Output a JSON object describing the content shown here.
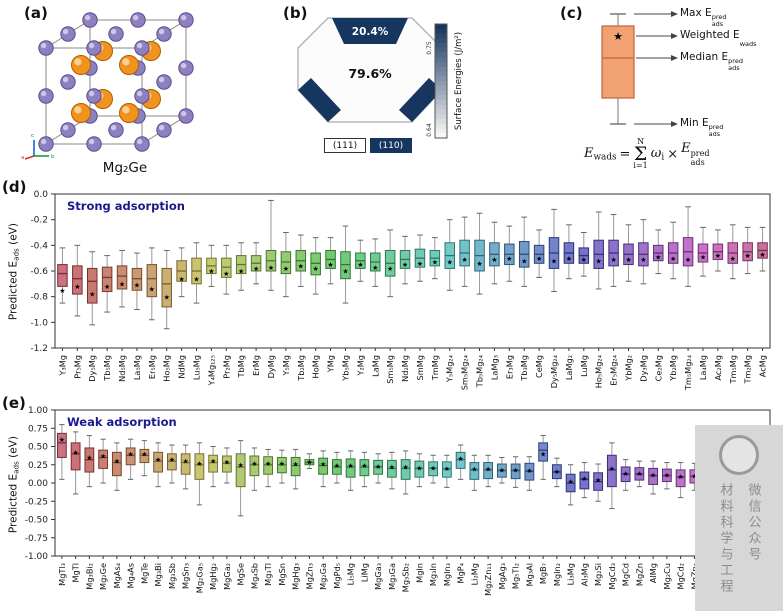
{
  "panel_labels": {
    "a": "(a)",
    "b": "(b)",
    "c": "(c)",
    "d": "(d)",
    "e": "(e)"
  },
  "panels": {
    "a": {
      "caption": "Mg₂Ge",
      "axis_labels": [
        "a",
        "b",
        "c"
      ],
      "colors": {
        "purple": "#8d7fc0",
        "purple_dark": "#5a4d8a",
        "purple_light": "#d9d1ef",
        "orange": "#f0941f",
        "orange_dark": "#a95f08",
        "orange_light": "#ffd9a1"
      }
    },
    "b": {
      "navy_hex": "#17365f",
      "top_pct": "20.4%",
      "front_pct": "79.6%",
      "legend": [
        {
          "label": "(111)",
          "color": "#ffffff"
        },
        {
          "label": "(110)",
          "color": "#17365f"
        }
      ],
      "colorbar": {
        "title": "Surface Energies (J/m²)",
        "tick_top": "0.75",
        "tick_bottom": "0.64"
      }
    },
    "c": {
      "box_color": "#f2a173",
      "box_edge": "#c4643a",
      "star_glyph": "★",
      "annotations": [
        {
          "text": "Max E",
          "sub": "ads",
          "sup": "pred"
        },
        {
          "text": "Weighted E",
          "sub": "wads",
          "sup": ""
        },
        {
          "text": "Median E",
          "sub": "ads",
          "sup": "pred"
        },
        {
          "text": "Min E",
          "sub": "ads",
          "sup": "pred"
        }
      ],
      "formula": {
        "lhs": "E",
        "lhs_sub": "wads",
        "eq": "=",
        "sum_top": "N",
        "sigma": "Σ",
        "sum_bottom": "i=1",
        "body": "ω",
        "body_sub": "i",
        "times": "×",
        "rhs": "E",
        "rhs_sup": "pred",
        "rhs_sub": "ads"
      }
    }
  },
  "chart_data": [
    {
      "type": "box",
      "title": "Strong adsorption",
      "title_color": "#1a1a8c",
      "ylabel": {
        "base": "Predicted E",
        "sub": "ads",
        "end": " (eV)"
      },
      "ylim": [
        0.0,
        -1.2
      ],
      "yticks": [
        "0.0",
        "-0.2",
        "-0.4",
        "-0.6",
        "-0.8",
        "-1.0",
        "-1.2"
      ],
      "grid": false,
      "legend": false,
      "marker_glyph": "★",
      "palette": {
        "hue_start": 350,
        "hue_span": 340,
        "sat": 45,
        "light": 62
      },
      "categories": [
        "Y₃Mg",
        "Pr₅Mg",
        "Dy₅Mg",
        "Tb₅Mg",
        "Nd₅Mg",
        "La₅Mg",
        "Er₅Mg",
        "Ho₅Mg",
        "NdMg",
        "Lu₅Mg",
        "Y₄Mg₁₂₅",
        "Pr₂Mg",
        "TbMg",
        "ErMg",
        "DyMg",
        "Y₅Mg",
        "Tb₂Mg",
        "HoMg",
        "YMg",
        "Yb₅Mg",
        "Y₂Mg",
        "LaMg",
        "Sm₅Mg",
        "Nd₂Mg",
        "SmMg",
        "TmMg",
        "Y₅Mg₂₄",
        "Sm₅Mg₂₄",
        "Tb₅Mg₂₄",
        "LaMg₃",
        "Er₃Mg",
        "Tb₃Mg",
        "CeMg",
        "Dy₅Mg₂₄",
        "LaMg₂",
        "LuMg",
        "Ho₅Mg₂₄",
        "Er₅Mg₂₄",
        "YbMg₂",
        "Dy₃Mg",
        "Ce₂Mg",
        "Yb₂Mg",
        "Tm₅Mg₂₄",
        "La₄Mg",
        "Ac₂Mg",
        "Tm₅Mg",
        "Tm₂Mg",
        "AcMg"
      ],
      "boxes": [
        [
          -0.85,
          -0.72,
          -0.62,
          -0.55,
          -0.42,
          -0.75
        ],
        [
          -0.95,
          -0.78,
          -0.66,
          -0.56,
          -0.4,
          -0.72
        ],
        [
          -1.02,
          -0.85,
          -0.68,
          -0.58,
          -0.45,
          -0.78
        ],
        [
          -0.92,
          -0.76,
          -0.65,
          -0.57,
          -0.48,
          -0.72
        ],
        [
          -0.88,
          -0.74,
          -0.64,
          -0.56,
          -0.44,
          -0.7
        ],
        [
          -0.9,
          -0.75,
          -0.66,
          -0.58,
          -0.46,
          -0.71
        ],
        [
          -0.98,
          -0.8,
          -0.66,
          -0.55,
          -0.42,
          -0.74
        ],
        [
          -1.05,
          -0.88,
          -0.7,
          -0.58,
          -0.44,
          -0.8
        ],
        [
          -0.8,
          -0.68,
          -0.6,
          -0.52,
          -0.42,
          -0.66
        ],
        [
          -0.85,
          -0.7,
          -0.6,
          -0.5,
          -0.38,
          -0.66
        ],
        [
          -0.72,
          -0.62,
          -0.56,
          -0.5,
          -0.4,
          -0.6
        ],
        [
          -0.78,
          -0.65,
          -0.57,
          -0.5,
          -0.4,
          -0.62
        ],
        [
          -0.75,
          -0.62,
          -0.55,
          -0.48,
          -0.38,
          -0.6
        ],
        [
          -0.7,
          -0.6,
          -0.54,
          -0.48,
          -0.38,
          -0.58
        ],
        [
          -0.75,
          -0.6,
          -0.52,
          -0.44,
          -0.05,
          -0.57
        ],
        [
          -0.8,
          -0.62,
          -0.53,
          -0.45,
          -0.3,
          -0.58
        ],
        [
          -0.72,
          -0.6,
          -0.52,
          -0.44,
          -0.32,
          -0.56
        ],
        [
          -0.78,
          -0.63,
          -0.54,
          -0.46,
          -0.34,
          -0.58
        ],
        [
          -0.7,
          -0.58,
          -0.51,
          -0.44,
          -0.34,
          -0.55
        ],
        [
          -0.85,
          -0.66,
          -0.55,
          -0.45,
          -0.25,
          -0.6
        ],
        [
          -0.68,
          -0.58,
          -0.52,
          -0.46,
          -0.36,
          -0.55
        ],
        [
          -0.72,
          -0.6,
          -0.53,
          -0.46,
          -0.35,
          -0.57
        ],
        [
          -0.8,
          -0.64,
          -0.54,
          -0.44,
          -0.28,
          -0.58
        ],
        [
          -0.7,
          -0.58,
          -0.51,
          -0.44,
          -0.33,
          -0.55
        ],
        [
          -0.68,
          -0.57,
          -0.5,
          -0.43,
          -0.32,
          -0.54
        ],
        [
          -0.66,
          -0.56,
          -0.5,
          -0.44,
          -0.34,
          -0.53
        ],
        [
          -0.75,
          -0.58,
          -0.48,
          -0.38,
          -0.2,
          -0.53
        ],
        [
          -0.72,
          -0.56,
          -0.46,
          -0.36,
          -0.18,
          -0.51
        ],
        [
          -0.78,
          -0.6,
          -0.48,
          -0.36,
          -0.15,
          -0.54
        ],
        [
          -0.7,
          -0.56,
          -0.47,
          -0.38,
          -0.22,
          -0.51
        ],
        [
          -0.68,
          -0.55,
          -0.47,
          -0.39,
          -0.25,
          -0.5
        ],
        [
          -0.72,
          -0.57,
          -0.47,
          -0.37,
          -0.18,
          -0.52
        ],
        [
          -0.65,
          -0.54,
          -0.47,
          -0.4,
          -0.28,
          -0.5
        ],
        [
          -0.76,
          -0.58,
          -0.46,
          -0.34,
          -0.12,
          -0.52
        ],
        [
          -0.66,
          -0.54,
          -0.46,
          -0.38,
          -0.24,
          -0.5
        ],
        [
          -0.64,
          -0.54,
          -0.48,
          -0.42,
          -0.3,
          -0.51
        ],
        [
          -0.74,
          -0.58,
          -0.47,
          -0.36,
          -0.14,
          -0.52
        ],
        [
          -0.72,
          -0.56,
          -0.46,
          -0.36,
          -0.16,
          -0.51
        ],
        [
          -0.68,
          -0.55,
          -0.47,
          -0.39,
          -0.24,
          -0.51
        ],
        [
          -0.7,
          -0.56,
          -0.47,
          -0.38,
          -0.2,
          -0.51
        ],
        [
          -0.62,
          -0.52,
          -0.46,
          -0.4,
          -0.28,
          -0.49
        ],
        [
          -0.66,
          -0.54,
          -0.46,
          -0.38,
          -0.22,
          -0.5
        ],
        [
          -0.72,
          -0.56,
          -0.45,
          -0.34,
          -0.1,
          -0.51
        ],
        [
          -0.64,
          -0.53,
          -0.46,
          -0.39,
          -0.26,
          -0.49
        ],
        [
          -0.6,
          -0.51,
          -0.45,
          -0.39,
          -0.28,
          -0.48
        ],
        [
          -0.66,
          -0.54,
          -0.46,
          -0.38,
          -0.24,
          -0.5
        ],
        [
          -0.62,
          -0.52,
          -0.45,
          -0.38,
          -0.26,
          -0.48
        ],
        [
          -0.6,
          -0.5,
          -0.44,
          -0.38,
          -0.26,
          -0.47
        ]
      ],
      "box_stats_order": [
        "whisker_low",
        "q1",
        "median",
        "q3",
        "whisker_high",
        "weighted_star"
      ]
    },
    {
      "type": "box",
      "title": "Weak adsorption",
      "title_color": "#1a1a8c",
      "ylabel": {
        "base": "Predicted E",
        "sub": "ads",
        "end": " (eV)"
      },
      "ylim": [
        1.0,
        -1.0
      ],
      "yticks": [
        "1.00",
        "0.75",
        "0.50",
        "0.25",
        "0.00",
        "-0.25",
        "-0.50",
        "-0.75",
        "-1.00"
      ],
      "grid": false,
      "legend": false,
      "marker_glyph": "★",
      "palette": {
        "hue_start": 350,
        "hue_span": 340,
        "sat": 45,
        "light": 62
      },
      "categories": [
        "MgTl₃",
        "MgTl",
        "Mg₃Bi₂",
        "Mg₂Ge",
        "MgAs₄",
        "Mg₄As",
        "MgTe",
        "Mg₃Bi",
        "Mg₃Sb",
        "MgSn₃",
        "Mg₂Ga₅",
        "MgHg₂",
        "MgGa₂",
        "MgSe",
        "Mg₄Sb",
        "Mg₃Tl",
        "MgSn",
        "MgHg₃",
        "MgZn₃",
        "Mg₂Ga",
        "MgPd₅",
        "Li₅Mg",
        "LiMg",
        "MgGa₃",
        "Mg₃Ga",
        "Mg₃Sb₂",
        "MgIn",
        "Mg₃In",
        "MgIn₃",
        "MgP₄",
        "Li₂Mg",
        "Mg₂Zn₁₁",
        "MgAg₃",
        "Mg₅Tl₂",
        "Mg₃Al",
        "MgB₇",
        "MgIn₂",
        "Li₃Mg",
        "Al₃Mg",
        "Mg₂Si",
        "MgCd₃",
        "MgCd",
        "MgZn",
        "AlMg",
        "Mg₂Cu",
        "MgCd₂",
        "MgZn₂",
        "MgAg",
        "MgAu₃",
        "MgNi₂",
        "MgPt",
        "MgP₂"
      ],
      "boxes": [
        [
          0.05,
          0.35,
          0.55,
          0.68,
          0.8,
          0.6
        ],
        [
          -0.15,
          0.18,
          0.4,
          0.55,
          0.7,
          0.42
        ],
        [
          -0.05,
          0.15,
          0.32,
          0.48,
          0.65,
          0.35
        ],
        [
          0.0,
          0.2,
          0.35,
          0.45,
          0.6,
          0.37
        ],
        [
          -0.1,
          0.1,
          0.28,
          0.42,
          0.55,
          0.3
        ],
        [
          0.05,
          0.25,
          0.38,
          0.48,
          0.6,
          0.4
        ],
        [
          0.1,
          0.28,
          0.38,
          0.46,
          0.58,
          0.4
        ],
        [
          -0.05,
          0.15,
          0.3,
          0.42,
          0.55,
          0.32
        ],
        [
          0.0,
          0.18,
          0.3,
          0.4,
          0.52,
          0.32
        ],
        [
          -0.08,
          0.12,
          0.28,
          0.4,
          0.52,
          0.3
        ],
        [
          -0.3,
          0.05,
          0.25,
          0.4,
          0.55,
          0.27
        ],
        [
          -0.05,
          0.15,
          0.28,
          0.38,
          0.5,
          0.3
        ],
        [
          0.0,
          0.15,
          0.27,
          0.37,
          0.48,
          0.29
        ],
        [
          -0.45,
          -0.05,
          0.22,
          0.4,
          0.58,
          0.25
        ],
        [
          -0.1,
          0.1,
          0.25,
          0.37,
          0.48,
          0.27
        ],
        [
          -0.05,
          0.12,
          0.25,
          0.36,
          0.46,
          0.27
        ],
        [
          0.0,
          0.14,
          0.25,
          0.35,
          0.45,
          0.27
        ],
        [
          -0.08,
          0.1,
          0.24,
          0.35,
          0.46,
          0.26
        ],
        [
          0.2,
          0.25,
          0.28,
          0.32,
          0.4,
          0.29
        ],
        [
          -0.05,
          0.12,
          0.24,
          0.34,
          0.44,
          0.26
        ],
        [
          0.0,
          0.12,
          0.22,
          0.32,
          0.42,
          0.24
        ],
        [
          -0.1,
          0.08,
          0.22,
          0.33,
          0.44,
          0.24
        ],
        [
          -0.05,
          0.1,
          0.22,
          0.32,
          0.42,
          0.24
        ],
        [
          0.0,
          0.12,
          0.22,
          0.31,
          0.4,
          0.23
        ],
        [
          -0.08,
          0.08,
          0.2,
          0.31,
          0.42,
          0.22
        ],
        [
          -0.15,
          0.05,
          0.2,
          0.32,
          0.44,
          0.22
        ],
        [
          -0.05,
          0.08,
          0.2,
          0.3,
          0.4,
          0.21
        ],
        [
          0.0,
          0.1,
          0.2,
          0.29,
          0.38,
          0.21
        ],
        [
          -0.06,
          0.08,
          0.19,
          0.29,
          0.38,
          0.2
        ],
        [
          0.05,
          0.2,
          0.32,
          0.42,
          0.52,
          0.34
        ],
        [
          -0.1,
          0.05,
          0.18,
          0.28,
          0.38,
          0.19
        ],
        [
          -0.05,
          0.06,
          0.18,
          0.28,
          0.38,
          0.19
        ],
        [
          0.0,
          0.08,
          0.17,
          0.26,
          0.35,
          0.18
        ],
        [
          -0.06,
          0.06,
          0.17,
          0.26,
          0.36,
          0.18
        ],
        [
          -0.1,
          0.04,
          0.16,
          0.27,
          0.36,
          0.17
        ],
        [
          0.05,
          0.3,
          0.45,
          0.55,
          0.65,
          0.4
        ],
        [
          -0.05,
          0.06,
          0.15,
          0.25,
          0.34,
          0.16
        ],
        [
          -0.3,
          -0.12,
          0.0,
          0.12,
          0.25,
          0.02
        ],
        [
          -0.2,
          -0.08,
          0.05,
          0.15,
          0.28,
          0.06
        ],
        [
          -0.25,
          -0.1,
          0.02,
          0.14,
          0.26,
          0.04
        ],
        [
          -0.35,
          -0.05,
          0.18,
          0.38,
          0.55,
          0.2
        ],
        [
          -0.1,
          0.02,
          0.12,
          0.22,
          0.32,
          0.13
        ],
        [
          -0.05,
          0.04,
          0.12,
          0.21,
          0.3,
          0.13
        ],
        [
          -0.15,
          -0.02,
          0.1,
          0.2,
          0.3,
          0.11
        ],
        [
          -0.08,
          0.02,
          0.1,
          0.19,
          0.28,
          0.11
        ],
        [
          -0.2,
          -0.05,
          0.08,
          0.18,
          0.28,
          0.09
        ],
        [
          -0.1,
          0.0,
          0.09,
          0.18,
          0.27,
          0.1
        ],
        [
          -0.06,
          0.02,
          0.09,
          0.17,
          0.26,
          0.1
        ],
        [
          -0.12,
          -0.02,
          0.08,
          0.16,
          0.25,
          0.09
        ],
        [
          -0.08,
          0.0,
          0.08,
          0.16,
          0.24,
          0.09
        ],
        [
          -0.05,
          0.02,
          0.08,
          0.15,
          0.23,
          0.09
        ],
        [
          -0.1,
          0.0,
          0.08,
          0.15,
          0.22,
          0.09
        ]
      ],
      "box_stats_order": [
        "whisker_low",
        "q1",
        "median",
        "q3",
        "whisker_high",
        "weighted_star"
      ]
    }
  ],
  "watermark": {
    "columns": [
      "材料科学与工程",
      "微信公众号"
    ]
  }
}
